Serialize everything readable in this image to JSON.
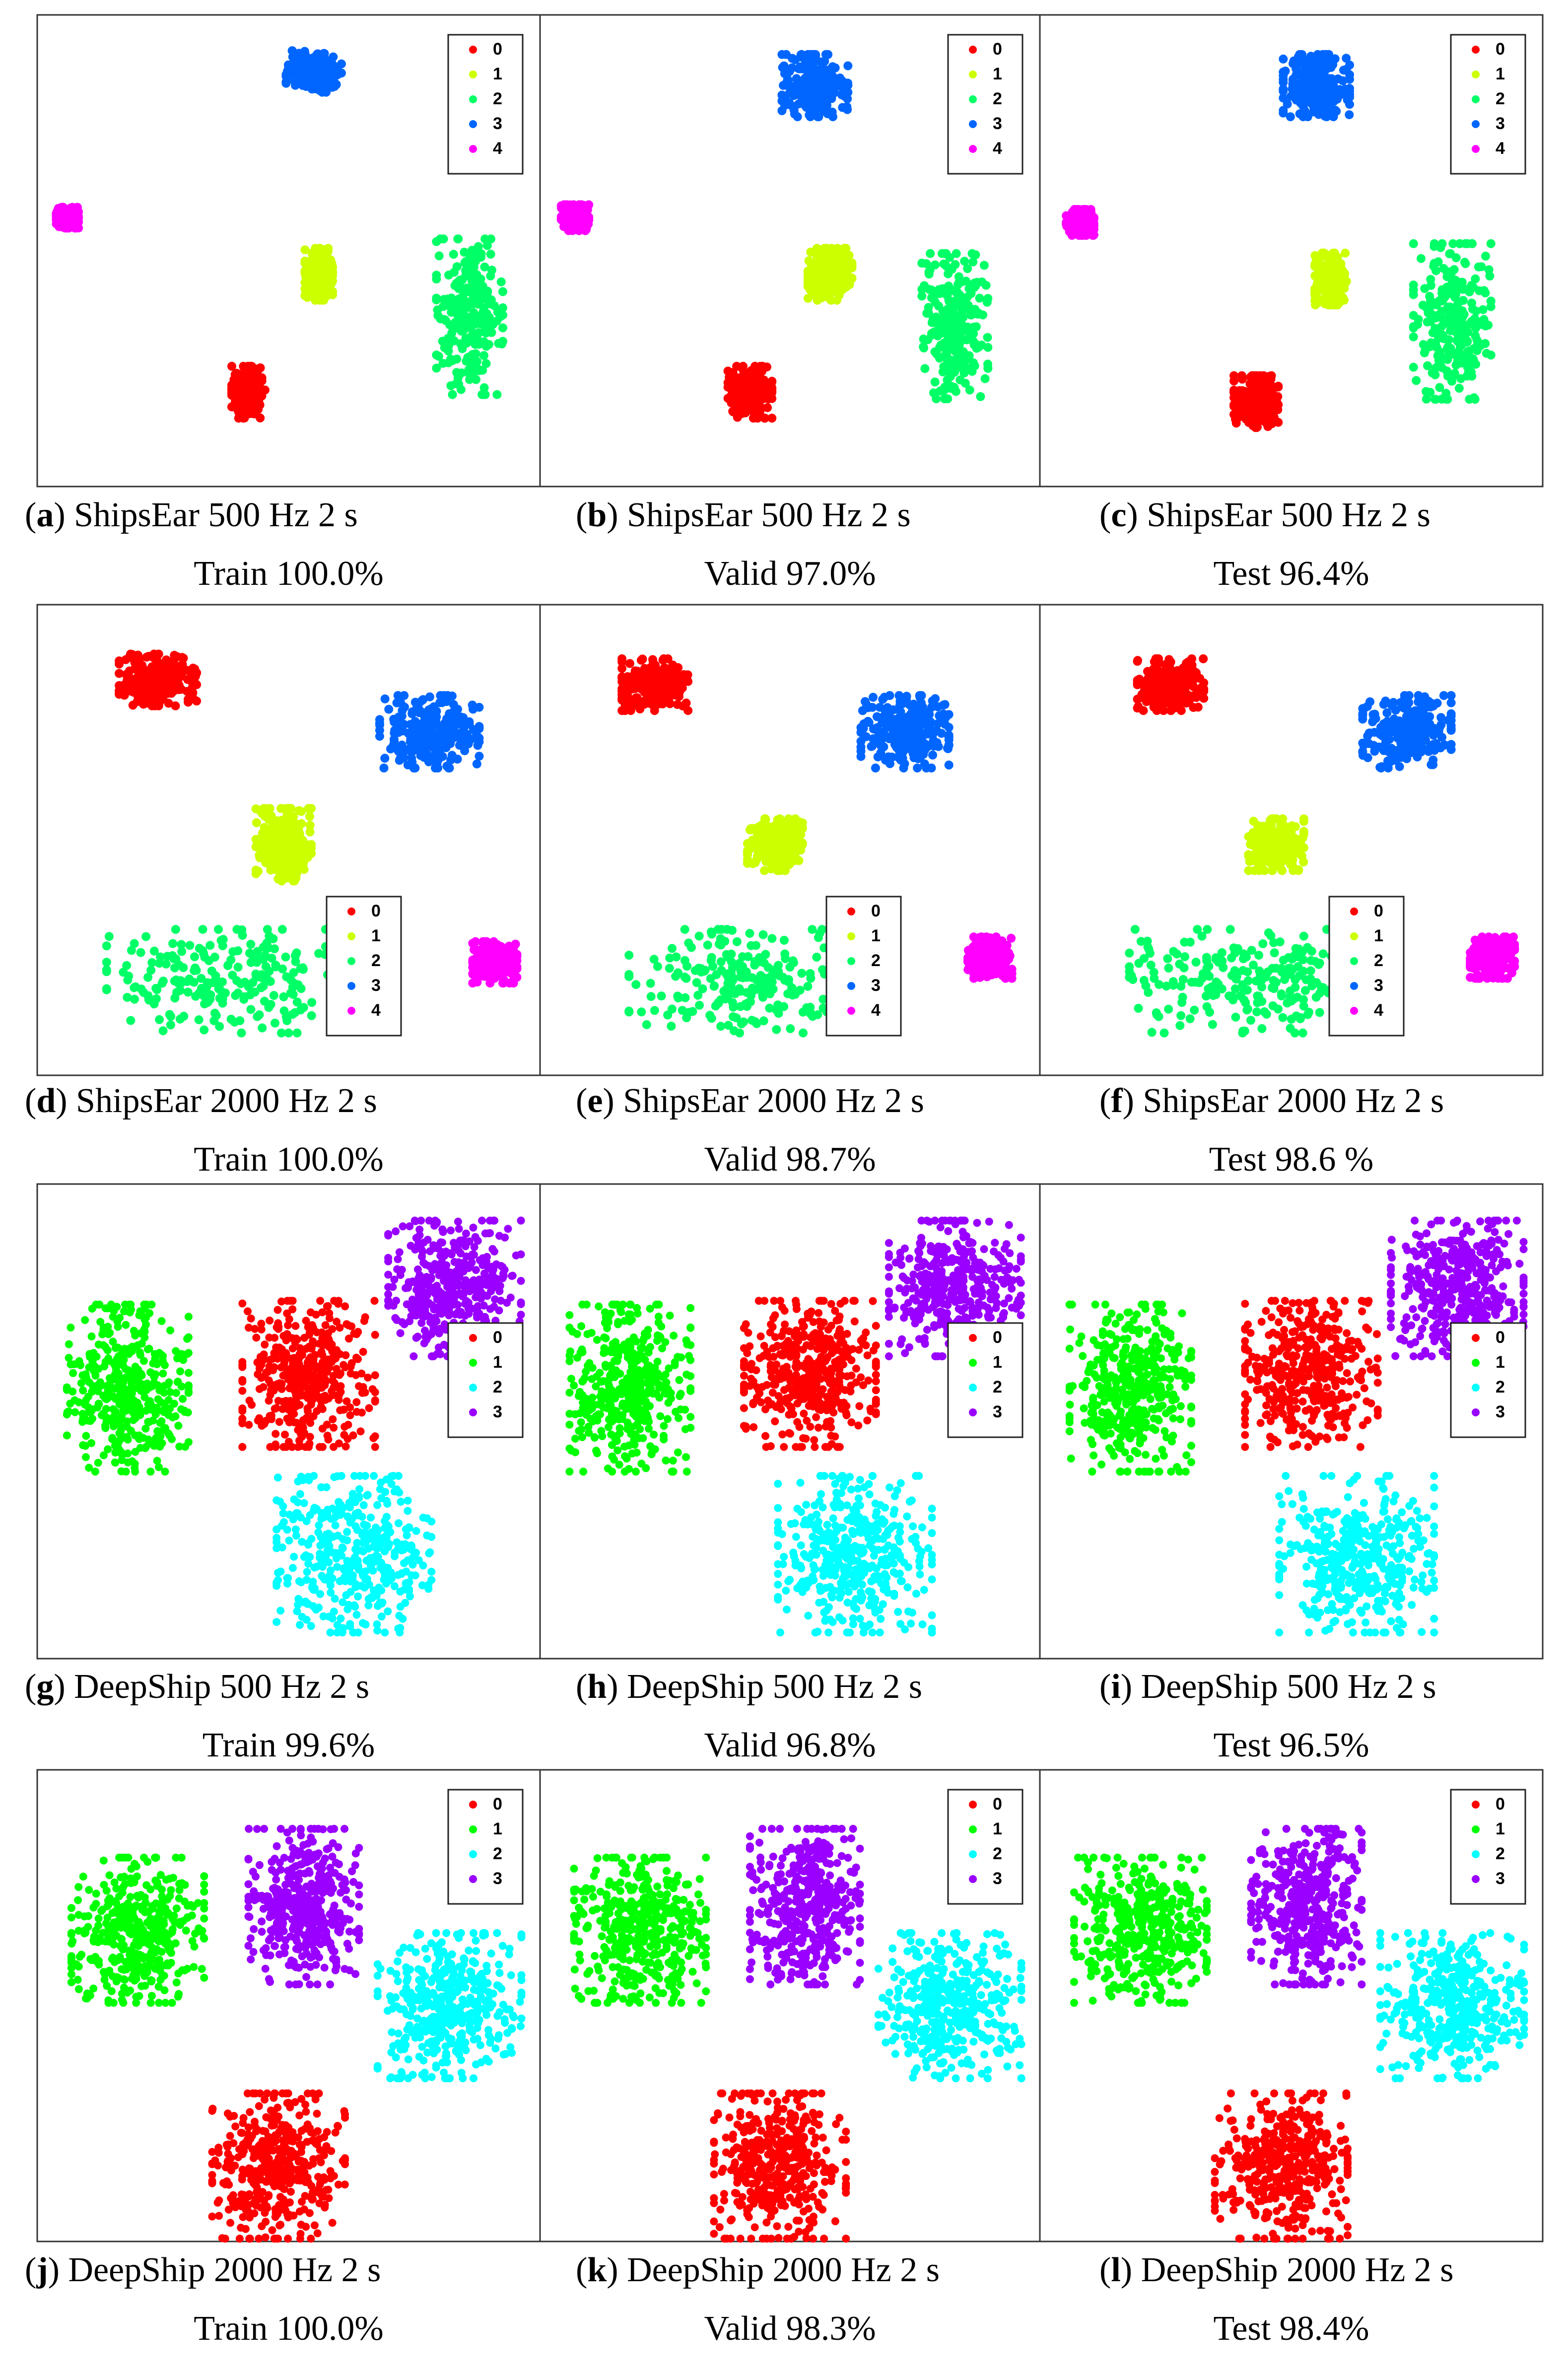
{
  "figure": {
    "rows": [
      {
        "panels": [
          {
            "letter": "a",
            "line1": "ShipsEar 500 Hz 2 s",
            "line2": "Train 100.0%"
          },
          {
            "letter": "b",
            "line1": "ShipsEar 500 Hz 2 s",
            "line2": "Valid 97.0%"
          },
          {
            "letter": "c",
            "line1": "ShipsEar 500 Hz 2 s",
            "line2": "Test 96.4%"
          }
        ]
      },
      {
        "panels": [
          {
            "letter": "d",
            "line1": "ShipsEar 2000 Hz 2 s",
            "line2": "Train 100.0%"
          },
          {
            "letter": "e",
            "line1": "ShipsEar 2000 Hz 2 s",
            "line2": "Valid 98.7%"
          },
          {
            "letter": "f",
            "line1": "ShipsEar 2000 Hz 2 s",
            "line2": "Test 98.6 %"
          }
        ]
      },
      {
        "panels": [
          {
            "letter": "g",
            "line1": "DeepShip 500 Hz 2 s",
            "line2": "Train 99.6%"
          },
          {
            "letter": "h",
            "line1": "DeepShip 500 Hz 2 s",
            "line2": "Valid 96.8%"
          },
          {
            "letter": "i",
            "line1": "DeepShip 500 Hz 2 s",
            "line2": "Test 96.5%"
          }
        ]
      },
      {
        "panels": [
          {
            "letter": "j",
            "line1": "DeepShip 2000 Hz 2 s",
            "line2": "Train 100.0%"
          },
          {
            "letter": "k",
            "line1": "DeepShip 2000 Hz 2 s",
            "line2": "Valid 98.3%"
          },
          {
            "letter": "l",
            "line1": "DeepShip 2000 Hz 2 s",
            "line2": "Test 98.4%"
          }
        ]
      }
    ]
  },
  "chart_data": [
    {
      "type": "scatter",
      "panel": "a",
      "legend": [
        "0",
        "1",
        "2",
        "3",
        "4"
      ],
      "legend_position": "top-right",
      "grid": false,
      "class_colors": {
        "0": "#ff0000",
        "1": "#ccff00",
        "2": "#00ff66",
        "3": "#0066ff",
        "4": "#ff00ff"
      },
      "clusters": [
        {
          "class": "3",
          "center": [
            0.55,
            0.12
          ],
          "spread": [
            0.05,
            0.04
          ]
        },
        {
          "class": "4",
          "center": [
            0.06,
            0.43
          ],
          "spread": [
            0.02,
            0.02
          ]
        },
        {
          "class": "1",
          "center": [
            0.56,
            0.55
          ],
          "spread": [
            0.025,
            0.05
          ]
        },
        {
          "class": "2",
          "center": [
            0.86,
            0.64
          ],
          "spread": [
            0.06,
            0.15
          ]
        },
        {
          "class": "0",
          "center": [
            0.42,
            0.8
          ],
          "spread": [
            0.03,
            0.05
          ]
        }
      ]
    },
    {
      "type": "scatter",
      "panel": "b",
      "legend": [
        "0",
        "1",
        "2",
        "3",
        "4"
      ],
      "legend_position": "top-right",
      "grid": false,
      "class_colors": {
        "0": "#ff0000",
        "1": "#ccff00",
        "2": "#00ff66",
        "3": "#0066ff",
        "4": "#ff00ff"
      },
      "clusters": [
        {
          "class": "3",
          "center": [
            0.55,
            0.15
          ],
          "spread": [
            0.06,
            0.06
          ]
        },
        {
          "class": "4",
          "center": [
            0.07,
            0.43
          ],
          "spread": [
            0.025,
            0.025
          ]
        },
        {
          "class": "1",
          "center": [
            0.58,
            0.55
          ],
          "spread": [
            0.04,
            0.05
          ]
        },
        {
          "class": "2",
          "center": [
            0.83,
            0.66
          ],
          "spread": [
            0.06,
            0.14
          ]
        },
        {
          "class": "0",
          "center": [
            0.42,
            0.8
          ],
          "spread": [
            0.04,
            0.05
          ]
        }
      ]
    },
    {
      "type": "scatter",
      "panel": "c",
      "legend": [
        "0",
        "1",
        "2",
        "3",
        "4"
      ],
      "legend_position": "top-right",
      "grid": false,
      "class_colors": {
        "0": "#ff0000",
        "1": "#ccff00",
        "2": "#00ff66",
        "3": "#0066ff",
        "4": "#ff00ff"
      },
      "clusters": [
        {
          "class": "3",
          "center": [
            0.55,
            0.15
          ],
          "spread": [
            0.06,
            0.06
          ]
        },
        {
          "class": "4",
          "center": [
            0.08,
            0.44
          ],
          "spread": [
            0.025,
            0.025
          ]
        },
        {
          "class": "1",
          "center": [
            0.58,
            0.56
          ],
          "spread": [
            0.03,
            0.05
          ]
        },
        {
          "class": "2",
          "center": [
            0.82,
            0.65
          ],
          "spread": [
            0.07,
            0.15
          ]
        },
        {
          "class": "0",
          "center": [
            0.43,
            0.82
          ],
          "spread": [
            0.04,
            0.05
          ]
        }
      ]
    },
    {
      "type": "scatter",
      "panel": "d",
      "legend": [
        "0",
        "1",
        "2",
        "3",
        "4"
      ],
      "legend_position": "bottom-right",
      "grid": false,
      "class_colors": {
        "0": "#ff0000",
        "1": "#ccff00",
        "2": "#00ff66",
        "3": "#0066ff",
        "4": "#ff00ff"
      },
      "clusters": [
        {
          "class": "0",
          "center": [
            0.24,
            0.16
          ],
          "spread": [
            0.07,
            0.05
          ]
        },
        {
          "class": "3",
          "center": [
            0.78,
            0.27
          ],
          "spread": [
            0.09,
            0.07
          ]
        },
        {
          "class": "1",
          "center": [
            0.49,
            0.51
          ],
          "spread": [
            0.05,
            0.07
          ]
        },
        {
          "class": "2",
          "center": [
            0.38,
            0.8
          ],
          "spread": [
            0.22,
            0.1
          ]
        },
        {
          "class": "4",
          "center": [
            0.91,
            0.76
          ],
          "spread": [
            0.04,
            0.04
          ]
        }
      ]
    },
    {
      "type": "scatter",
      "panel": "e",
      "legend": [
        "0",
        "1",
        "2",
        "3",
        "4"
      ],
      "legend_position": "bottom-right",
      "grid": false,
      "class_colors": {
        "0": "#ff0000",
        "1": "#ccff00",
        "2": "#00ff66",
        "3": "#0066ff",
        "4": "#ff00ff"
      },
      "clusters": [
        {
          "class": "0",
          "center": [
            0.23,
            0.17
          ],
          "spread": [
            0.06,
            0.05
          ]
        },
        {
          "class": "3",
          "center": [
            0.73,
            0.27
          ],
          "spread": [
            0.08,
            0.07
          ]
        },
        {
          "class": "1",
          "center": [
            0.47,
            0.51
          ],
          "spread": [
            0.05,
            0.05
          ]
        },
        {
          "class": "2",
          "center": [
            0.42,
            0.8
          ],
          "spread": [
            0.22,
            0.1
          ]
        },
        {
          "class": "4",
          "center": [
            0.9,
            0.75
          ],
          "spread": [
            0.04,
            0.04
          ]
        }
      ]
    },
    {
      "type": "scatter",
      "panel": "f",
      "legend": [
        "0",
        "1",
        "2",
        "3",
        "4"
      ],
      "legend_position": "bottom-right",
      "grid": false,
      "class_colors": {
        "0": "#ff0000",
        "1": "#ccff00",
        "2": "#00ff66",
        "3": "#0066ff",
        "4": "#ff00ff"
      },
      "clusters": [
        {
          "class": "0",
          "center": [
            0.26,
            0.17
          ],
          "spread": [
            0.06,
            0.05
          ]
        },
        {
          "class": "3",
          "center": [
            0.73,
            0.27
          ],
          "spread": [
            0.08,
            0.07
          ]
        },
        {
          "class": "1",
          "center": [
            0.47,
            0.51
          ],
          "spread": [
            0.05,
            0.05
          ]
        },
        {
          "class": "2",
          "center": [
            0.42,
            0.8
          ],
          "spread": [
            0.22,
            0.1
          ]
        },
        {
          "class": "4",
          "center": [
            0.9,
            0.75
          ],
          "spread": [
            0.04,
            0.04
          ]
        }
      ]
    },
    {
      "type": "scatter",
      "panel": "g",
      "legend": [
        "0",
        "1",
        "2",
        "3"
      ],
      "legend_position": "right",
      "grid": false,
      "class_colors": {
        "0": "#ff0000",
        "1": "#00ff00",
        "2": "#00ffff",
        "3": "#9900ff"
      },
      "clusters": [
        {
          "class": "3",
          "center": [
            0.83,
            0.22
          ],
          "spread": [
            0.12,
            0.13
          ]
        },
        {
          "class": "1",
          "center": [
            0.18,
            0.43
          ],
          "spread": [
            0.11,
            0.16
          ]
        },
        {
          "class": "0",
          "center": [
            0.54,
            0.4
          ],
          "spread": [
            0.12,
            0.14
          ]
        },
        {
          "class": "2",
          "center": [
            0.63,
            0.78
          ],
          "spread": [
            0.14,
            0.15
          ]
        }
      ]
    },
    {
      "type": "scatter",
      "panel": "h",
      "legend": [
        "0",
        "1",
        "2",
        "3"
      ],
      "legend_position": "right",
      "grid": false,
      "class_colors": {
        "0": "#ff0000",
        "1": "#00ff00",
        "2": "#00ffff",
        "3": "#9900ff"
      },
      "clusters": [
        {
          "class": "3",
          "center": [
            0.83,
            0.22
          ],
          "spread": [
            0.12,
            0.13
          ]
        },
        {
          "class": "1",
          "center": [
            0.18,
            0.43
          ],
          "spread": [
            0.11,
            0.16
          ]
        },
        {
          "class": "0",
          "center": [
            0.54,
            0.4
          ],
          "spread": [
            0.12,
            0.14
          ]
        },
        {
          "class": "2",
          "center": [
            0.63,
            0.78
          ],
          "spread": [
            0.14,
            0.15
          ]
        }
      ]
    },
    {
      "type": "scatter",
      "panel": "i",
      "legend": [
        "0",
        "1",
        "2",
        "3"
      ],
      "legend_position": "right",
      "grid": false,
      "class_colors": {
        "0": "#ff0000",
        "1": "#00ff00",
        "2": "#00ffff",
        "3": "#9900ff"
      },
      "clusters": [
        {
          "class": "3",
          "center": [
            0.83,
            0.22
          ],
          "spread": [
            0.12,
            0.13
          ]
        },
        {
          "class": "1",
          "center": [
            0.18,
            0.43
          ],
          "spread": [
            0.11,
            0.16
          ]
        },
        {
          "class": "0",
          "center": [
            0.54,
            0.4
          ],
          "spread": [
            0.12,
            0.14
          ]
        },
        {
          "class": "2",
          "center": [
            0.63,
            0.78
          ],
          "spread": [
            0.14,
            0.15
          ]
        }
      ]
    },
    {
      "type": "scatter",
      "panel": "j",
      "legend": [
        "0",
        "1",
        "2",
        "3"
      ],
      "legend_position": "top-right",
      "grid": false,
      "class_colors": {
        "0": "#ff0000",
        "1": "#00ff00",
        "2": "#00ffff",
        "3": "#9900ff"
      },
      "clusters": [
        {
          "class": "1",
          "center": [
            0.2,
            0.34
          ],
          "spread": [
            0.12,
            0.14
          ]
        },
        {
          "class": "3",
          "center": [
            0.53,
            0.29
          ],
          "spread": [
            0.1,
            0.15
          ]
        },
        {
          "class": "2",
          "center": [
            0.82,
            0.5
          ],
          "spread": [
            0.13,
            0.14
          ]
        },
        {
          "class": "0",
          "center": [
            0.48,
            0.84
          ],
          "spread": [
            0.12,
            0.14
          ]
        }
      ]
    },
    {
      "type": "scatter",
      "panel": "k",
      "legend": [
        "0",
        "1",
        "2",
        "3"
      ],
      "legend_position": "top-right",
      "grid": false,
      "class_colors": {
        "0": "#ff0000",
        "1": "#00ff00",
        "2": "#00ffff",
        "3": "#9900ff"
      },
      "clusters": [
        {
          "class": "1",
          "center": [
            0.2,
            0.34
          ],
          "spread": [
            0.12,
            0.14
          ]
        },
        {
          "class": "3",
          "center": [
            0.53,
            0.29
          ],
          "spread": [
            0.1,
            0.15
          ]
        },
        {
          "class": "2",
          "center": [
            0.82,
            0.5
          ],
          "spread": [
            0.13,
            0.14
          ]
        },
        {
          "class": "0",
          "center": [
            0.48,
            0.84
          ],
          "spread": [
            0.12,
            0.14
          ]
        }
      ]
    },
    {
      "type": "scatter",
      "panel": "l",
      "legend": [
        "0",
        "1",
        "2",
        "3"
      ],
      "legend_position": "top-right",
      "grid": false,
      "class_colors": {
        "0": "#ff0000",
        "1": "#00ff00",
        "2": "#00ffff",
        "3": "#9900ff"
      },
      "clusters": [
        {
          "class": "1",
          "center": [
            0.2,
            0.34
          ],
          "spread": [
            0.12,
            0.14
          ]
        },
        {
          "class": "3",
          "center": [
            0.53,
            0.29
          ],
          "spread": [
            0.1,
            0.15
          ]
        },
        {
          "class": "2",
          "center": [
            0.82,
            0.5
          ],
          "spread": [
            0.13,
            0.14
          ]
        },
        {
          "class": "0",
          "center": [
            0.48,
            0.84
          ],
          "spread": [
            0.12,
            0.14
          ]
        }
      ]
    }
  ]
}
